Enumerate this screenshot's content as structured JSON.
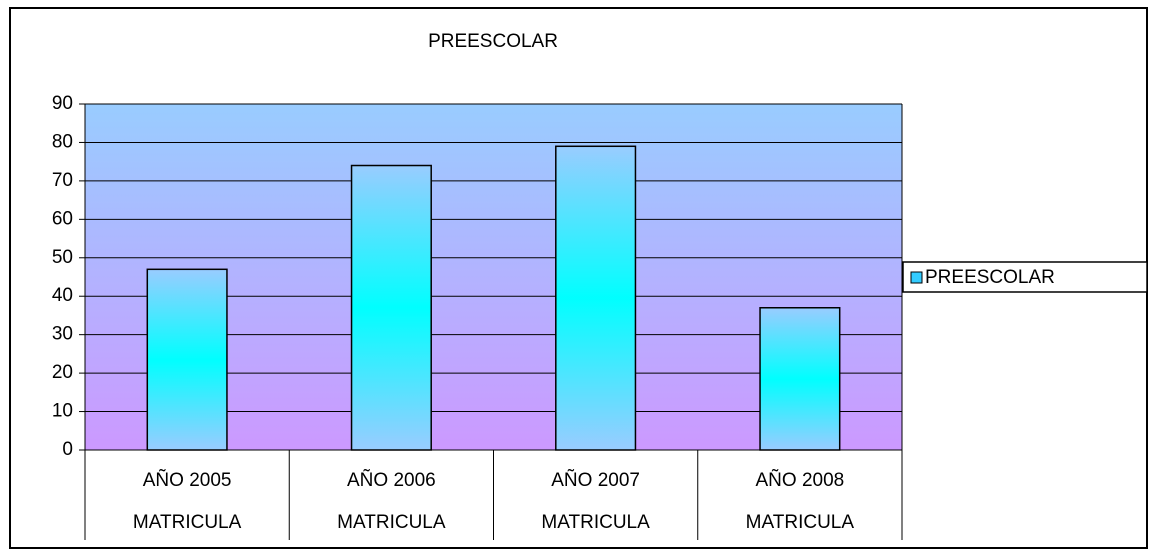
{
  "chart_data": {
    "type": "bar",
    "title": "PREESCOLAR",
    "categories": [
      "AÑO 2005",
      "AÑO 2006",
      "AÑO 2007",
      "AÑO 2008"
    ],
    "subcategories": [
      "MATRICULA",
      "MATRICULA",
      "MATRICULA",
      "MATRICULA"
    ],
    "series": [
      {
        "name": "PREESCOLAR",
        "color": "#33ccff",
        "values": [
          47,
          74,
          79,
          37
        ]
      }
    ],
    "ylim": [
      0,
      90
    ],
    "yticks": [
      0,
      10,
      20,
      30,
      40,
      50,
      60,
      70,
      80,
      90
    ],
    "grid": true,
    "legend": "right"
  }
}
